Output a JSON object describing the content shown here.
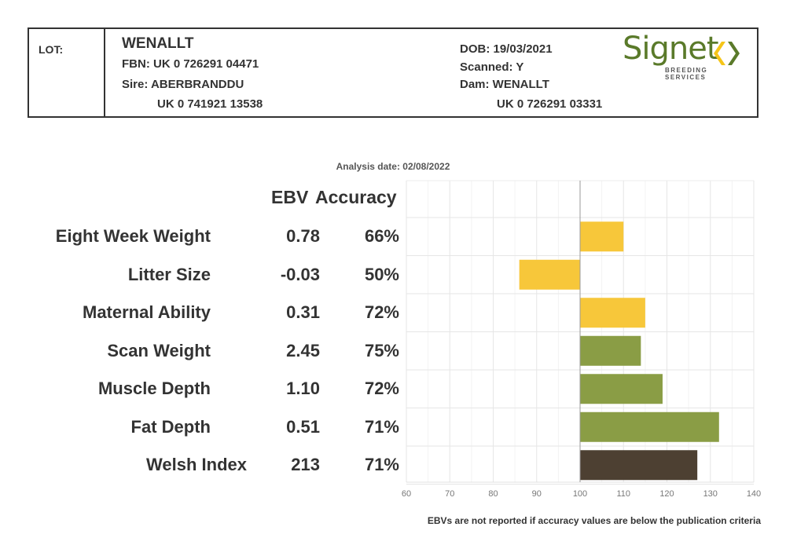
{
  "header": {
    "lot_label": "LOT:",
    "name": "WENALLT",
    "fbn": "FBN: UK 0 726291 04471",
    "sire": "Sire: ABERBRANDDU",
    "sire_id": "UK 0 741921 13538",
    "dob": "DOB: 19/03/2021",
    "scanned": "Scanned: Y",
    "dam": "Dam: WENALLT",
    "dam_id": "UK 0 726291 03331",
    "logo_word": "Signet",
    "logo_sub": "BREEDING SERVICES",
    "logo_colors": {
      "green": "#5a7a2a",
      "yellow": "#f5c518"
    }
  },
  "analysis_date": "Analysis date: 02/08/2022",
  "columns": {
    "ebv": "EBV",
    "accuracy": "Accuracy"
  },
  "footnote": "EBVs are not reported if accuracy values are below the publication criteria",
  "chart_data": {
    "type": "bar",
    "orientation": "horizontal",
    "baseline": 100,
    "xlim": [
      60,
      140
    ],
    "xticks": [
      60,
      70,
      80,
      90,
      100,
      110,
      120,
      130,
      140
    ],
    "grid": true,
    "categories": [
      "Eight Week Weight",
      "Litter Size",
      "Maternal Ability",
      "Scan Weight",
      "Muscle Depth",
      "Fat Depth",
      "Welsh Index"
    ],
    "ebv": [
      "0.78",
      "-0.03",
      "0.31",
      "2.45",
      "1.10",
      "0.51",
      "213"
    ],
    "accuracy": [
      "66%",
      "50%",
      "72%",
      "75%",
      "72%",
      "71%",
      "71%"
    ],
    "values": [
      110,
      86,
      115,
      114,
      119,
      132,
      127
    ],
    "colors": [
      "#f7c73a",
      "#f7c73a",
      "#f7c73a",
      "#8a9d45",
      "#8a9d45",
      "#8a9d45",
      "#4d4032"
    ]
  }
}
